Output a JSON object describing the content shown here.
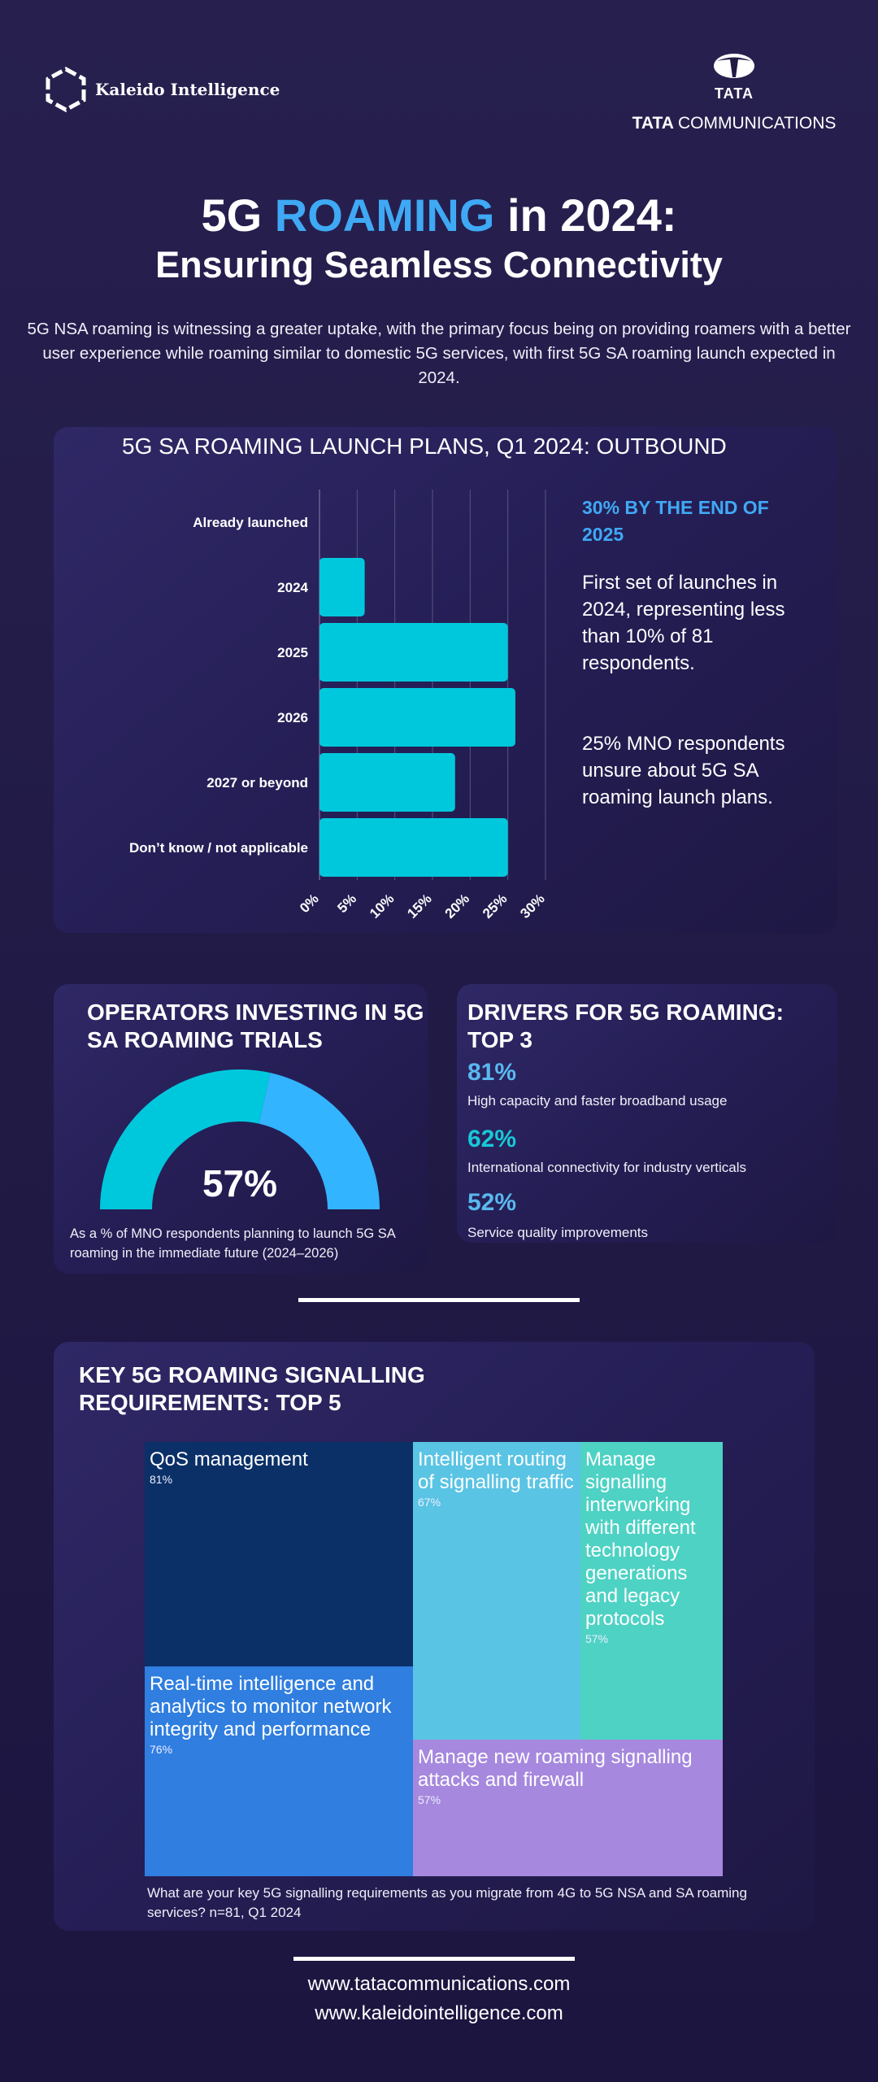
{
  "header": {
    "kaleido_name": "Kaleido Intelligence",
    "tata_word": "TATA",
    "tata_comm_bold": "TATA",
    "tata_comm_rest": "COMMUNICATIONS"
  },
  "title": {
    "prefix": "5G ",
    "accent": "ROAMING",
    "suffix": " in 2024:",
    "subtitle": "Ensuring Seamless Connectivity"
  },
  "intro": "5G NSA roaming is witnessing a greater uptake, with the primary focus being on providing roamers with a better user experience while roaming similar to domestic 5G services, with first 5G SA roaming launch expected in 2024.",
  "colors": {
    "accent_blue": "#3fa9f5",
    "bar_cyan": "#00c8dc",
    "gauge_cyan": "#00c8dc",
    "gauge_blue": "#33b4ff",
    "driver_blue": "#5ab8f0",
    "driver_cyan": "#18c8d8"
  },
  "launch": {
    "note_head": "30% BY THE END OF 2025",
    "note_1": "First set of launches in 2024, representing less than 10% of 81 respondents.",
    "note_2": "25% MNO respondents unsure about 5G SA roaming launch plans."
  },
  "chart_data": [
    {
      "type": "bar",
      "orientation": "horizontal",
      "title": "5G SA ROAMING LAUNCH PLANS, Q1 2024: OUTBOUND",
      "categories": [
        "Already launched",
        "2024",
        "2025",
        "2026",
        "2027 or beyond",
        "Don’t know / not applicable"
      ],
      "values": [
        0,
        6,
        25,
        26,
        18,
        25
      ],
      "xlim": [
        0,
        30
      ],
      "ticks": [
        "0%",
        "5%",
        "10%",
        "15%",
        "20%",
        "25%",
        "30%"
      ],
      "grid": true
    },
    {
      "type": "pie",
      "variant": "semicircle-gauge",
      "title": "OPERATORS INVESTING IN 5G SA ROAMING TRIALS",
      "value": 57,
      "value_label": "57%",
      "caption": "As a % of MNO respondents planning to launch 5G SA roaming in the immediate future (2024–2026)"
    },
    {
      "type": "table",
      "title": "DRIVERS FOR 5G ROAMING: TOP 3",
      "rows": [
        {
          "pct": "81%",
          "label": "High capacity and faster broadband usage",
          "color": "#5ab8f0"
        },
        {
          "pct": "62%",
          "label": "International connectivity for industry verticals",
          "color": "#18c8d8"
        },
        {
          "pct": "52%",
          "label": "Service quality improvements",
          "color": "#5ab8f0"
        }
      ]
    },
    {
      "type": "heatmap",
      "variant": "treemap",
      "title": "KEY 5G ROAMING SIGNALLING REQUIREMENTS: TOP 5",
      "items": [
        {
          "label": "QoS management",
          "value": 81,
          "pct": "81%",
          "color": "#0b3068"
        },
        {
          "label": "Real-time intelligence and analytics to monitor network integrity and performance",
          "value": 76,
          "pct": "76%",
          "color": "#2f7ee0"
        },
        {
          "label": "Intelligent routing of signalling traffic",
          "value": 67,
          "pct": "67%",
          "color": "#5ac4e4"
        },
        {
          "label": "Manage signalling interworking with different technology generations and legacy protocols",
          "value": 57,
          "pct": "57%",
          "color": "#4ed2c4"
        },
        {
          "label": "Manage new roaming signalling attacks and firewall",
          "value": 57,
          "pct": "57%",
          "color": "#a688de"
        }
      ],
      "caption": "What are your key 5G signalling requirements as you migrate from 4G to 5G NSA and SA roaming services? n=81, Q1 2024"
    }
  ],
  "footer": {
    "url1": "www.tatacommunications.com",
    "url2": "www.kaleidointelligence.com"
  }
}
